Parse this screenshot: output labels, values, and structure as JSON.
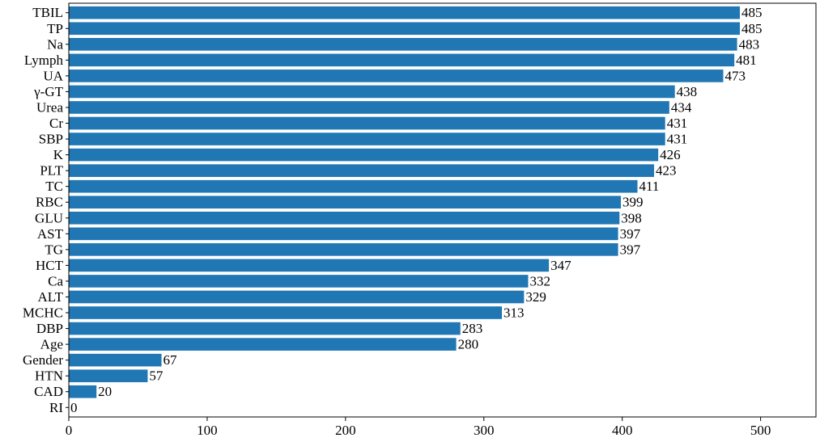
{
  "chart_data": {
    "type": "bar",
    "orientation": "horizontal",
    "title": "",
    "xlabel": "",
    "ylabel": "",
    "xlim": [
      0,
      540
    ],
    "xticks": [
      0,
      100,
      200,
      300,
      400,
      500
    ],
    "grid": false,
    "bar_color": "#2077b4",
    "categories": [
      "TBIL",
      "TP",
      "Na",
      "Lymph",
      "UA",
      "γ-GT",
      "Urea",
      "Cr",
      "SBP",
      "K",
      "PLT",
      "TC",
      "RBC",
      "GLU",
      "AST",
      "TG",
      "HCT",
      "Ca",
      "ALT",
      "MCHC",
      "DBP",
      "Age",
      "Gender",
      "HTN",
      "CAD",
      "RI"
    ],
    "values": [
      485,
      485,
      483,
      481,
      473,
      438,
      434,
      431,
      431,
      426,
      423,
      411,
      399,
      398,
      397,
      397,
      347,
      332,
      329,
      313,
      283,
      280,
      67,
      57,
      20,
      0
    ]
  }
}
